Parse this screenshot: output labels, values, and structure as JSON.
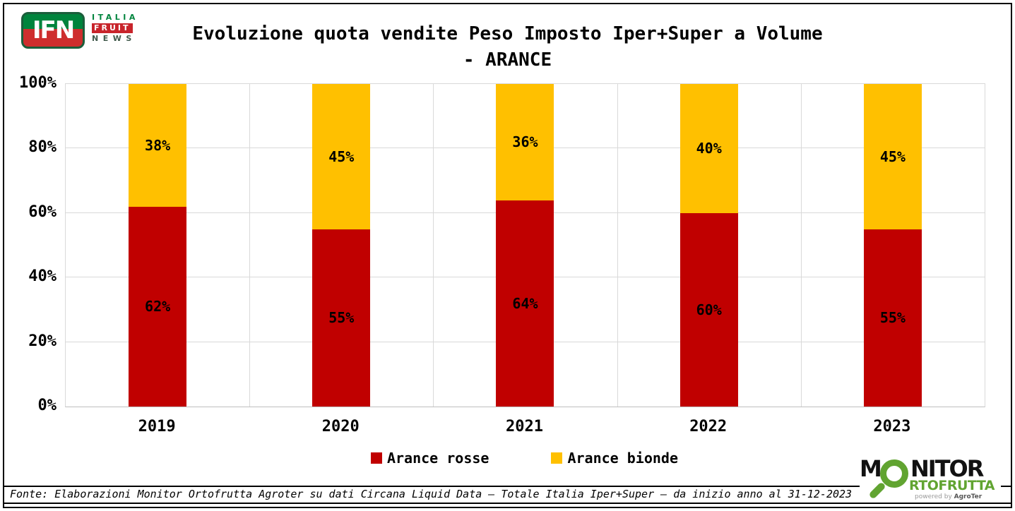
{
  "title": {
    "line1": "Evoluzione quota vendite Peso Imposto Iper+Super a Volume",
    "line2": "- ARANCE"
  },
  "header_logo": {
    "ifn": "IFN",
    "italia": "ITALIA",
    "fruit": "FRUIT",
    "news": "NEWS"
  },
  "chart_data": {
    "type": "bar",
    "stacked": true,
    "title": "Evoluzione quota vendite Peso Imposto Iper+Super a Volume - ARANCE",
    "categories": [
      "2019",
      "2020",
      "2021",
      "2022",
      "2023"
    ],
    "series": [
      {
        "name": "Arance rosse",
        "color": "#C00000",
        "values": [
          62,
          55,
          64,
          60,
          55
        ]
      },
      {
        "name": "Arance bionde",
        "color": "#FFC000",
        "values": [
          38,
          45,
          36,
          40,
          45
        ]
      }
    ],
    "value_suffix": "%",
    "ylim": [
      0,
      100
    ],
    "yticks": [
      "0%",
      "20%",
      "40%",
      "60%",
      "80%",
      "100%"
    ],
    "grid": true,
    "legend_position": "bottom"
  },
  "footer": {
    "text": "Fonte: Elaborazioni Monitor Ortofrutta Agroter su dati Circana Liquid Data – Totale Italia Iper+Super –  da inizio anno al 31-12-2023"
  },
  "monitor_logo": {
    "m": "M",
    "nitor": "NITOR",
    "row2": "RTOFRUTTA",
    "powered": "powered by ",
    "agroter": "AgroTer"
  }
}
